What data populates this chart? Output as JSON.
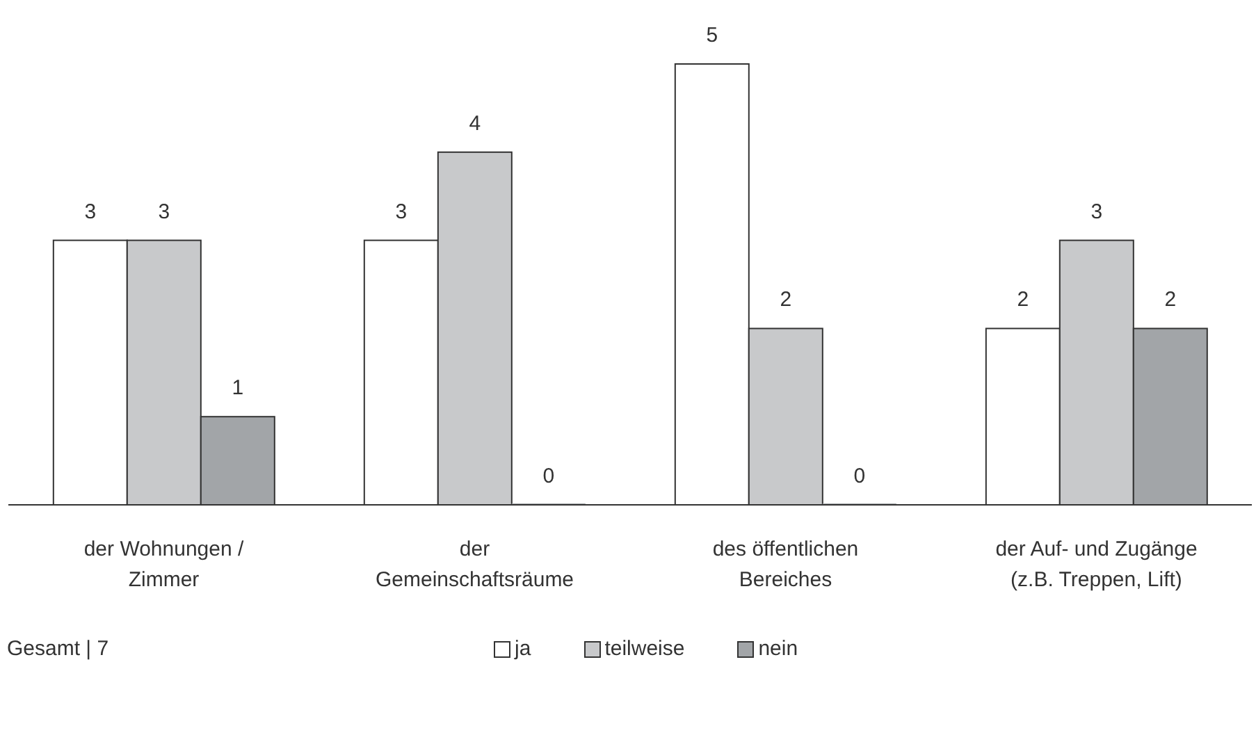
{
  "chart_data": {
    "type": "bar",
    "categories": [
      "der Wohnungen / Zimmer",
      "der Gemeinschaftsräume",
      "des öffentlichen Bereiches",
      "der Auf- und Zugänge (z.B. Treppen, Lift)"
    ],
    "series": [
      {
        "name": "ja",
        "color": "#ffffff",
        "values": [
          3,
          3,
          5,
          2
        ]
      },
      {
        "name": "teilweise",
        "color": "#c8c9cb",
        "values": [
          3,
          4,
          2,
          3
        ]
      },
      {
        "name": "nein",
        "color": "#a2a5a8",
        "values": [
          1,
          0,
          0,
          2
        ]
      }
    ],
    "data_labels": true,
    "legend": "bottom",
    "grid": false,
    "annotations": [
      "Gesamt | 7"
    ]
  }
}
